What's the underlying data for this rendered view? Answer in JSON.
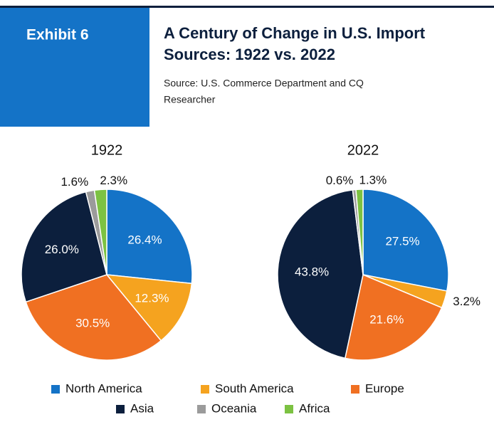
{
  "header": {
    "exhibit": "Exhibit 6",
    "title": [
      "A Century of Change in U.S. Import",
      "Sources: 1922 vs. 2022"
    ],
    "source": [
      "Source: U.S. Commerce Department and CQ",
      "Researcher"
    ]
  },
  "chart_data": [
    {
      "type": "pie",
      "title": "1922",
      "categories": [
        "North America",
        "South America",
        "Europe",
        "Asia",
        "Oceania",
        "Africa"
      ],
      "values": [
        26.4,
        12.3,
        30.5,
        26.0,
        1.6,
        2.3
      ],
      "value_labels": [
        "26.4%",
        "12.3%",
        "30.5%",
        "26.0%",
        "1.6%",
        "2.3%"
      ],
      "colors": [
        "#1473c7",
        "#f5a31f",
        "#f07022",
        "#0c1f3d",
        "#9b9b9b",
        "#7cc242"
      ]
    },
    {
      "type": "pie",
      "title": "2022",
      "categories": [
        "North America",
        "South America",
        "Europe",
        "Asia",
        "Oceania",
        "Africa"
      ],
      "values": [
        27.5,
        3.2,
        21.6,
        43.8,
        0.6,
        1.3
      ],
      "value_labels": [
        "27.5%",
        "3.2%",
        "21.6%",
        "43.8%",
        "0.6%",
        "1.3%"
      ],
      "colors": [
        "#1473c7",
        "#f5a31f",
        "#f07022",
        "#0c1f3d",
        "#9b9b9b",
        "#7cc242"
      ]
    }
  ]
}
